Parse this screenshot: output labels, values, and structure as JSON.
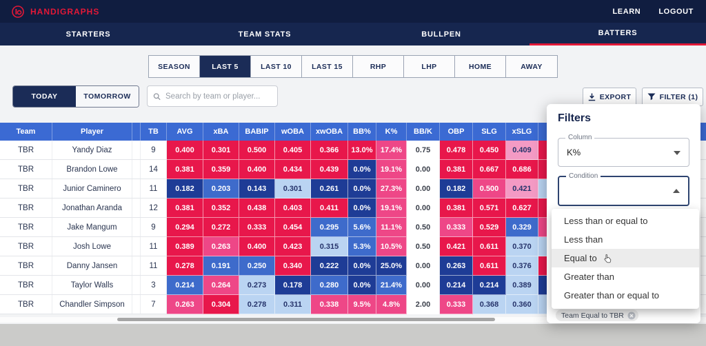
{
  "brand": {
    "name": "HANDIGRAPHS"
  },
  "topbar": {
    "links": [
      "LEARN",
      "LOGOUT"
    ]
  },
  "nav": {
    "items": [
      {
        "label": "STARTERS",
        "active": false
      },
      {
        "label": "TEAM STATS",
        "active": false
      },
      {
        "label": "BULLPEN",
        "active": false
      },
      {
        "label": "BATTERS",
        "active": true
      }
    ]
  },
  "range_tabs": [
    {
      "label": "SEASON",
      "active": false
    },
    {
      "label": "LAST 5",
      "active": true
    },
    {
      "label": "LAST 10",
      "active": false
    },
    {
      "label": "LAST 15",
      "active": false
    },
    {
      "label": "RHP",
      "active": false
    },
    {
      "label": "LHP",
      "active": false
    },
    {
      "label": "HOME",
      "active": false
    },
    {
      "label": "AWAY",
      "active": false
    }
  ],
  "day_toggle": [
    {
      "label": "TODAY",
      "active": true
    },
    {
      "label": "TOMORROW",
      "active": false
    }
  ],
  "search": {
    "placeholder": "Search by team or player..."
  },
  "actions": {
    "export_label": "EXPORT",
    "filter_label": "FILTER (1)"
  },
  "table": {
    "columns": [
      "Team",
      "Player",
      "TB",
      "AVG",
      "xBA",
      "BABIP",
      "wOBA",
      "xwOBA",
      "BB%",
      "K%",
      "BB/K",
      "OBP",
      "SLG",
      "xSLG"
    ],
    "rows": [
      {
        "team": "TBR",
        "player": "Yandy Diaz",
        "tb": "9",
        "stats": [
          {
            "v": "0.400",
            "c": "red"
          },
          {
            "v": "0.301",
            "c": "red"
          },
          {
            "v": "0.500",
            "c": "red"
          },
          {
            "v": "0.405",
            "c": "red"
          },
          {
            "v": "0.366",
            "c": "red"
          },
          {
            "v": "13.0%",
            "c": "red"
          },
          {
            "v": "17.4%",
            "c": "pink"
          },
          {
            "v": "0.75",
            "c": "white"
          },
          {
            "v": "0.478",
            "c": "red"
          },
          {
            "v": "0.450",
            "c": "red"
          },
          {
            "v": "0.409",
            "c": "lightpink"
          }
        ],
        "extra": "red"
      },
      {
        "team": "TBR",
        "player": "Brandon Lowe",
        "tb": "14",
        "stats": [
          {
            "v": "0.381",
            "c": "red"
          },
          {
            "v": "0.359",
            "c": "red"
          },
          {
            "v": "0.400",
            "c": "red"
          },
          {
            "v": "0.434",
            "c": "red"
          },
          {
            "v": "0.439",
            "c": "red"
          },
          {
            "v": "0.0%",
            "c": "navy"
          },
          {
            "v": "19.1%",
            "c": "pink"
          },
          {
            "v": "0.00",
            "c": "white"
          },
          {
            "v": "0.381",
            "c": "red"
          },
          {
            "v": "0.667",
            "c": "red"
          },
          {
            "v": "0.686",
            "c": "red"
          }
        ],
        "extra": "red"
      },
      {
        "team": "TBR",
        "player": "Junior Caminero",
        "tb": "11",
        "stats": [
          {
            "v": "0.182",
            "c": "navy"
          },
          {
            "v": "0.203",
            "c": "blue"
          },
          {
            "v": "0.143",
            "c": "navy"
          },
          {
            "v": "0.301",
            "c": "lightblue"
          },
          {
            "v": "0.261",
            "c": "navy"
          },
          {
            "v": "0.0%",
            "c": "navy"
          },
          {
            "v": "27.3%",
            "c": "pink"
          },
          {
            "v": "0.00",
            "c": "white"
          },
          {
            "v": "0.182",
            "c": "navy"
          },
          {
            "v": "0.500",
            "c": "pink"
          },
          {
            "v": "0.421",
            "c": "lightpink"
          }
        ],
        "extra": "lightblue"
      },
      {
        "team": "TBR",
        "player": "Jonathan Aranda",
        "tb": "12",
        "stats": [
          {
            "v": "0.381",
            "c": "red"
          },
          {
            "v": "0.352",
            "c": "red"
          },
          {
            "v": "0.438",
            "c": "red"
          },
          {
            "v": "0.403",
            "c": "red"
          },
          {
            "v": "0.411",
            "c": "red"
          },
          {
            "v": "0.0%",
            "c": "navy"
          },
          {
            "v": "19.1%",
            "c": "pink"
          },
          {
            "v": "0.00",
            "c": "white"
          },
          {
            "v": "0.381",
            "c": "red"
          },
          {
            "v": "0.571",
            "c": "red"
          },
          {
            "v": "0.627",
            "c": "red"
          }
        ],
        "extra": "red"
      },
      {
        "team": "TBR",
        "player": "Jake Mangum",
        "tb": "9",
        "stats": [
          {
            "v": "0.294",
            "c": "red"
          },
          {
            "v": "0.272",
            "c": "red"
          },
          {
            "v": "0.333",
            "c": "red"
          },
          {
            "v": "0.454",
            "c": "red"
          },
          {
            "v": "0.295",
            "c": "blue"
          },
          {
            "v": "5.6%",
            "c": "blue"
          },
          {
            "v": "11.1%",
            "c": "pink"
          },
          {
            "v": "0.50",
            "c": "white"
          },
          {
            "v": "0.333",
            "c": "pink"
          },
          {
            "v": "0.529",
            "c": "red"
          },
          {
            "v": "0.329",
            "c": "blue"
          }
        ],
        "extra": "pink"
      },
      {
        "team": "TBR",
        "player": "Josh Lowe",
        "tb": "11",
        "stats": [
          {
            "v": "0.389",
            "c": "red"
          },
          {
            "v": "0.263",
            "c": "pink"
          },
          {
            "v": "0.400",
            "c": "red"
          },
          {
            "v": "0.423",
            "c": "red"
          },
          {
            "v": "0.315",
            "c": "lightblue"
          },
          {
            "v": "5.3%",
            "c": "blue"
          },
          {
            "v": "10.5%",
            "c": "pink"
          },
          {
            "v": "0.50",
            "c": "white"
          },
          {
            "v": "0.421",
            "c": "red"
          },
          {
            "v": "0.611",
            "c": "red"
          },
          {
            "v": "0.370",
            "c": "lightblue"
          }
        ],
        "extra": "lightblue"
      },
      {
        "team": "TBR",
        "player": "Danny Jansen",
        "tb": "11",
        "stats": [
          {
            "v": "0.278",
            "c": "red"
          },
          {
            "v": "0.191",
            "c": "blue"
          },
          {
            "v": "0.250",
            "c": "blue"
          },
          {
            "v": "0.340",
            "c": "red"
          },
          {
            "v": "0.222",
            "c": "navy"
          },
          {
            "v": "0.0%",
            "c": "navy"
          },
          {
            "v": "25.0%",
            "c": "navy"
          },
          {
            "v": "0.00",
            "c": "white"
          },
          {
            "v": "0.263",
            "c": "navy"
          },
          {
            "v": "0.611",
            "c": "red"
          },
          {
            "v": "0.376",
            "c": "lightblue"
          }
        ],
        "extra": "red"
      },
      {
        "team": "TBR",
        "player": "Taylor Walls",
        "tb": "3",
        "stats": [
          {
            "v": "0.214",
            "c": "blue"
          },
          {
            "v": "0.264",
            "c": "pink"
          },
          {
            "v": "0.273",
            "c": "lightblue"
          },
          {
            "v": "0.178",
            "c": "navy"
          },
          {
            "v": "0.280",
            "c": "blue"
          },
          {
            "v": "0.0%",
            "c": "navy"
          },
          {
            "v": "21.4%",
            "c": "blue"
          },
          {
            "v": "0.00",
            "c": "white"
          },
          {
            "v": "0.214",
            "c": "navy"
          },
          {
            "v": "0.214",
            "c": "navy"
          },
          {
            "v": "0.389",
            "c": "lightblue"
          }
        ],
        "extra": "navy"
      },
      {
        "team": "TBR",
        "player": "Chandler Simpson",
        "tb": "7",
        "stats": [
          {
            "v": "0.263",
            "c": "pink"
          },
          {
            "v": "0.304",
            "c": "red"
          },
          {
            "v": "0.278",
            "c": "lightblue"
          },
          {
            "v": "0.311",
            "c": "lightblue"
          },
          {
            "v": "0.338",
            "c": "pink"
          },
          {
            "v": "9.5%",
            "c": "pink"
          },
          {
            "v": "4.8%",
            "c": "pink"
          },
          {
            "v": "2.00",
            "c": "white"
          },
          {
            "v": "0.333",
            "c": "pink"
          },
          {
            "v": "0.368",
            "c": "lightblue"
          },
          {
            "v": "0.360",
            "c": "lightblue"
          }
        ],
        "extra": "lightblue"
      }
    ]
  },
  "filters_panel": {
    "title": "Filters",
    "column_label": "Column",
    "column_value": "K%",
    "condition_label": "Condition",
    "condition_value": "",
    "condition_options": [
      "Less than or equal to",
      "Less than",
      "Equal to",
      "Greater than",
      "Greater than or equal to"
    ],
    "hovered_option": "Equal to",
    "active_filter_chip": "Team Equal to TBR"
  },
  "colors": {
    "accent_red": "#e31837",
    "topbar_navy": "#101d40",
    "header_blue": "#3b6ad3",
    "cell_red": "#e8174b",
    "cell_pink": "#ee4787",
    "cell_lightpink": "#f49ac4",
    "cell_navy": "#1e3c96",
    "cell_blue": "#3e6bcb",
    "cell_lightblue": "#bad4f2"
  }
}
